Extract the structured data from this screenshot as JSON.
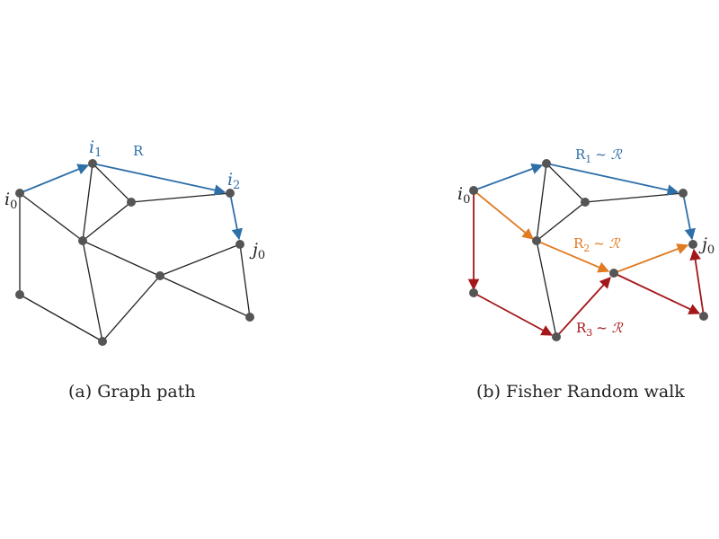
{
  "colors": {
    "edge": "#222222",
    "node": "#555555",
    "blue": "#2e6fa8",
    "orange": "#e07b22",
    "red": "#a3161a",
    "text": "#222222"
  },
  "panel_a": {
    "caption": "(a) Graph path",
    "labels": {
      "i0": "i",
      "i0_sub": "0",
      "i1": "i",
      "i1_sub": "1",
      "i2": "i",
      "i2_sub": "2",
      "j0": "j",
      "j0_sub": "0",
      "r": "R"
    }
  },
  "panel_b": {
    "caption": "(b) Fisher Random walk",
    "labels": {
      "i0": "i",
      "i0_sub": "0",
      "j0": "j",
      "j0_sub": "0",
      "r1": "R",
      "r1_sub": "1",
      "r1_rel": "~ ℛ",
      "r2": "R",
      "r2_sub": "2",
      "r2_rel": "~ ℛ",
      "r3": "R",
      "r3_sub": "3",
      "r3_rel": "~ ℛ"
    }
  }
}
